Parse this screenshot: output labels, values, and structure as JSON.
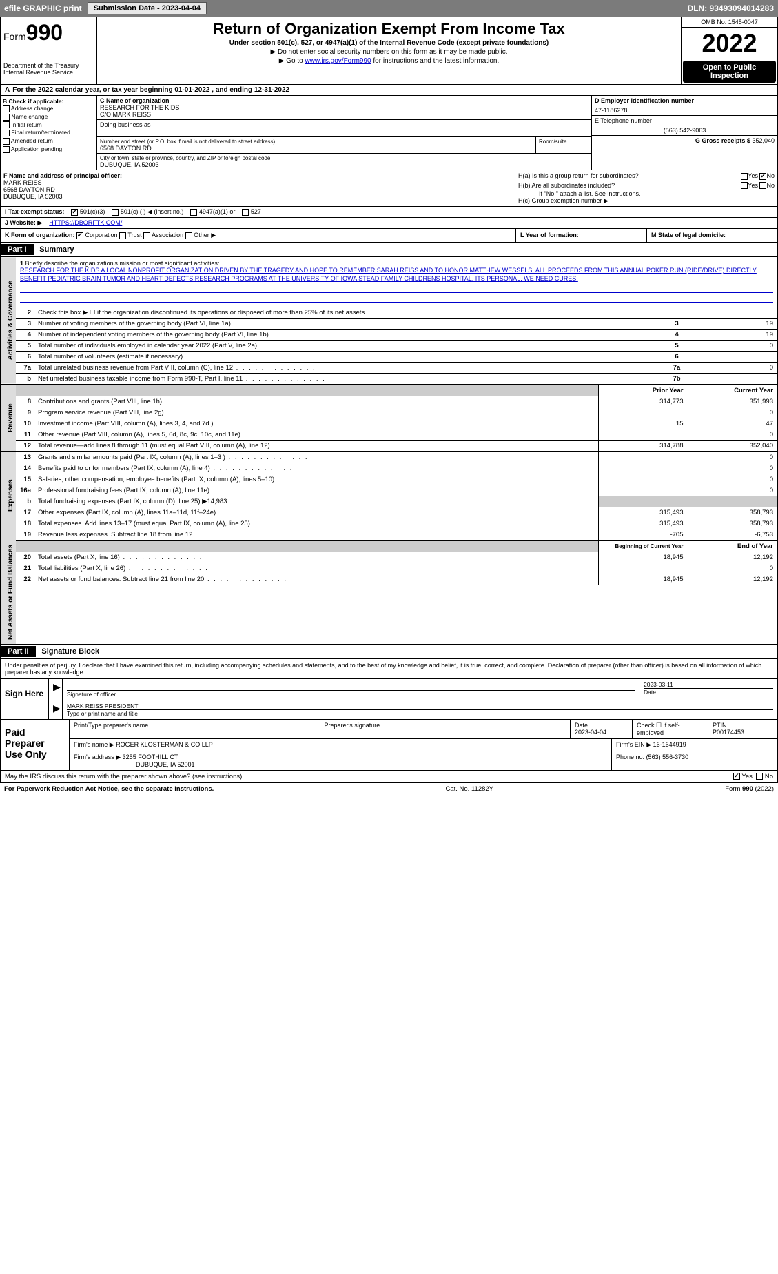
{
  "topbar": {
    "efile": "efile GRAPHIC print",
    "submission": "Submission Date - 2023-04-04",
    "dln": "DLN: 93493094014283"
  },
  "header": {
    "form_word": "Form",
    "form_num": "990",
    "title": "Return of Organization Exempt From Income Tax",
    "subtitle": "Under section 501(c), 527, or 4947(a)(1) of the Internal Revenue Code (except private foundations)",
    "note1": "▶ Do not enter social security numbers on this form as it may be made public.",
    "note2_pre": "▶ Go to ",
    "note2_link": "www.irs.gov/Form990",
    "note2_post": " for instructions and the latest information.",
    "dept": "Department of the Treasury",
    "irs": "Internal Revenue Service",
    "omb": "OMB No. 1545-0047",
    "year": "2022",
    "open": "Open to Public Inspection"
  },
  "period": "For the 2022 calendar year, or tax year beginning 01-01-2022    , and ending 12-31-2022",
  "boxA": {
    "label": "A"
  },
  "boxB": {
    "hdr": "B Check if applicable:",
    "items": [
      "Address change",
      "Name change",
      "Initial return",
      "Final return/terminated",
      "Amended return",
      "Application pending"
    ]
  },
  "boxC": {
    "name_lbl": "C Name of organization",
    "name": "RESEARCH FOR THE KIDS",
    "co": "C/O MARK REISS",
    "dba_lbl": "Doing business as",
    "addr_lbl": "Number and street (or P.O. box if mail is not delivered to street address)",
    "addr": "6568 DAYTON RD",
    "room_lbl": "Room/suite",
    "city_lbl": "City or town, state or province, country, and ZIP or foreign postal code",
    "city": "DUBUQUE, IA  52003"
  },
  "boxD": {
    "lbl": "D Employer identification number",
    "val": "47-1186278"
  },
  "boxE": {
    "lbl": "E Telephone number",
    "val": "(563) 542-9063"
  },
  "boxG": {
    "lbl": "G Gross receipts $",
    "val": "352,040"
  },
  "boxF": {
    "lbl": "F Name and address of principal officer:",
    "name": "MARK REISS",
    "addr1": "6568 DAYTON RD",
    "addr2": "DUBUQUE, IA  52003"
  },
  "boxH": {
    "a": "H(a) Is this a group return for subordinates?",
    "b": "H(b) Are all subordinates included?",
    "note": "If \"No,\" attach a list. See instructions.",
    "c": "H(c) Group exemption number ▶",
    "yes": "Yes",
    "no": "No"
  },
  "boxI": {
    "lbl": "I Tax-exempt status:",
    "o1": "501(c)(3)",
    "o2": "501(c) (  ) ◀ (insert no.)",
    "o3": "4947(a)(1) or",
    "o4": "527"
  },
  "boxJ": {
    "lbl": "J Website: ▶",
    "url": "HTTPS://DBQRFTK.COM/"
  },
  "boxK": {
    "lbl": "K Form of organization:",
    "o1": "Corporation",
    "o2": "Trust",
    "o3": "Association",
    "o4": "Other ▶"
  },
  "boxL": {
    "lbl": "L Year of formation:"
  },
  "boxM": {
    "lbl": "M State of legal domicile:"
  },
  "part1": {
    "hdr": "Part I",
    "title": "Summary"
  },
  "mission": {
    "num": "1",
    "lbl": "Briefly describe the organization's mission or most significant activities:",
    "txt": "RESEARCH FOR THE KIDS A LOCAL NONPROFIT ORGANIZATION DRIVEN BY THE TRAGEDY AND HOPE TO REMEMBER SARAH REISS AND TO HONOR MATTHEW WESSELS. ALL PROCEEDS FROM THIS ANNUAL POKER RUN (RIDE/DRIVE) DIRECTLY BENEFIT PEDIATRIC BRAIN TUMOR AND HEART DEFECTS RESEARCH PROGRAMS AT THE UNIVERSITY OF IOWA STEAD FAMILY CHILDRENS HOSPITAL. ITS PERSONAL. WE NEED CURES."
  },
  "vtabs": {
    "gov": "Activities & Governance",
    "rev": "Revenue",
    "exp": "Expenses",
    "net": "Net Assets or Fund Balances"
  },
  "lines_gov": [
    {
      "n": "2",
      "t": "Check this box ▶ ☐ if the organization discontinued its operations or disposed of more than 25% of its net assets.",
      "box": "",
      "v": ""
    },
    {
      "n": "3",
      "t": "Number of voting members of the governing body (Part VI, line 1a)",
      "box": "3",
      "v": "19"
    },
    {
      "n": "4",
      "t": "Number of independent voting members of the governing body (Part VI, line 1b)",
      "box": "4",
      "v": "19"
    },
    {
      "n": "5",
      "t": "Total number of individuals employed in calendar year 2022 (Part V, line 2a)",
      "box": "5",
      "v": "0"
    },
    {
      "n": "6",
      "t": "Total number of volunteers (estimate if necessary)",
      "box": "6",
      "v": ""
    },
    {
      "n": "7a",
      "t": "Total unrelated business revenue from Part VIII, column (C), line 12",
      "box": "7a",
      "v": "0"
    },
    {
      "n": "b",
      "t": "Net unrelated business taxable income from Form 990-T, Part I, line 11",
      "box": "7b",
      "v": ""
    }
  ],
  "col_hdr": {
    "py": "Prior Year",
    "cy": "Current Year"
  },
  "lines_rev": [
    {
      "n": "8",
      "t": "Contributions and grants (Part VIII, line 1h)",
      "py": "314,773",
      "cy": "351,993"
    },
    {
      "n": "9",
      "t": "Program service revenue (Part VIII, line 2g)",
      "py": "",
      "cy": "0"
    },
    {
      "n": "10",
      "t": "Investment income (Part VIII, column (A), lines 3, 4, and 7d )",
      "py": "15",
      "cy": "47"
    },
    {
      "n": "11",
      "t": "Other revenue (Part VIII, column (A), lines 5, 6d, 8c, 9c, 10c, and 11e)",
      "py": "",
      "cy": "0"
    },
    {
      "n": "12",
      "t": "Total revenue—add lines 8 through 11 (must equal Part VIII, column (A), line 12)",
      "py": "314,788",
      "cy": "352,040"
    }
  ],
  "lines_exp": [
    {
      "n": "13",
      "t": "Grants and similar amounts paid (Part IX, column (A), lines 1–3 )",
      "py": "",
      "cy": "0"
    },
    {
      "n": "14",
      "t": "Benefits paid to or for members (Part IX, column (A), line 4)",
      "py": "",
      "cy": "0"
    },
    {
      "n": "15",
      "t": "Salaries, other compensation, employee benefits (Part IX, column (A), lines 5–10)",
      "py": "",
      "cy": "0"
    },
    {
      "n": "16a",
      "t": "Professional fundraising fees (Part IX, column (A), line 11e)",
      "py": "",
      "cy": "0"
    },
    {
      "n": "b",
      "t": "Total fundraising expenses (Part IX, column (D), line 25) ▶14,983",
      "py": "GREY",
      "cy": "GREY"
    },
    {
      "n": "17",
      "t": "Other expenses (Part IX, column (A), lines 11a–11d, 11f–24e)",
      "py": "315,493",
      "cy": "358,793"
    },
    {
      "n": "18",
      "t": "Total expenses. Add lines 13–17 (must equal Part IX, column (A), line 25)",
      "py": "315,493",
      "cy": "358,793"
    },
    {
      "n": "19",
      "t": "Revenue less expenses. Subtract line 18 from line 12",
      "py": "-705",
      "cy": "-6,753"
    }
  ],
  "col_hdr2": {
    "boy": "Beginning of Current Year",
    "eoy": "End of Year"
  },
  "lines_net": [
    {
      "n": "20",
      "t": "Total assets (Part X, line 16)",
      "py": "18,945",
      "cy": "12,192"
    },
    {
      "n": "21",
      "t": "Total liabilities (Part X, line 26)",
      "py": "",
      "cy": "0"
    },
    {
      "n": "22",
      "t": "Net assets or fund balances. Subtract line 21 from line 20",
      "py": "18,945",
      "cy": "12,192"
    }
  ],
  "part2": {
    "hdr": "Part II",
    "title": "Signature Block"
  },
  "sig_intro": "Under penalties of perjury, I declare that I have examined this return, including accompanying schedules and statements, and to the best of my knowledge and belief, it is true, correct, and complete. Declaration of preparer (other than officer) is based on all information of which preparer has any knowledge.",
  "sign": {
    "here": "Sign Here",
    "sig_lbl": "Signature of officer",
    "date_lbl": "Date",
    "date": "2023-03-11",
    "name": "MARK REISS  PRESIDENT",
    "name_lbl": "Type or print name and title"
  },
  "paid": {
    "hdr": "Paid Preparer Use Only",
    "p1": "Print/Type preparer's name",
    "p2": "Preparer's signature",
    "p3": "Date",
    "p3v": "2023-04-04",
    "p4": "Check ☐ if self-employed",
    "p5": "PTIN",
    "p5v": "P00174453",
    "firm_lbl": "Firm's name    ▶",
    "firm": "ROGER KLOSTERMAN & CO LLP",
    "ein_lbl": "Firm's EIN ▶",
    "ein": "16-1644919",
    "addr_lbl": "Firm's address ▶",
    "addr1": "3255 FOOTHILL CT",
    "addr2": "DUBUQUE, IA  52001",
    "phone_lbl": "Phone no.",
    "phone": "(563) 556-3730"
  },
  "discuss": {
    "q": "May the IRS discuss this return with the preparer shown above? (see instructions)",
    "yes": "Yes",
    "no": "No"
  },
  "footer": {
    "left": "For Paperwork Reduction Act Notice, see the separate instructions.",
    "mid": "Cat. No. 11282Y",
    "right": "Form 990 (2022)"
  }
}
